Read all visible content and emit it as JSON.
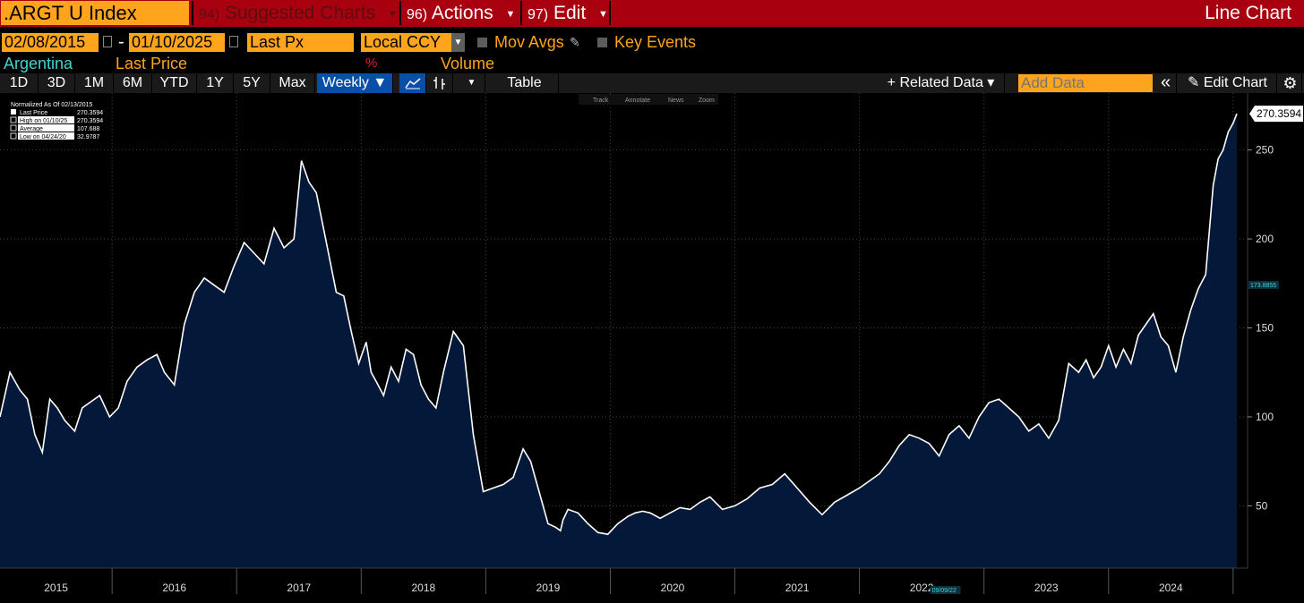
{
  "header": {
    "ticker": ".ARGT U Index",
    "menu": [
      {
        "num": "94)",
        "label": "Suggested Charts"
      },
      {
        "num": "96)",
        "label": "Actions"
      },
      {
        "num": "97)",
        "label": "Edit"
      }
    ],
    "chart_type": "Line Chart"
  },
  "controls": {
    "start_date": "02/08/2015",
    "end_date": "01/10/2025",
    "separator": "-",
    "field": "Last Px",
    "currency": "Local CCY",
    "mov_avgs": "Mov Avgs",
    "key_events": "Key Events"
  },
  "legend": {
    "security": "Argentina",
    "last_price": "Last Price",
    "percent": "%",
    "volume": "Volume"
  },
  "toolbar": {
    "ranges": [
      "1D",
      "3D",
      "1M",
      "6M",
      "YTD",
      "1Y",
      "5Y",
      "Max"
    ],
    "period": "Weekly ▼",
    "table": "Table",
    "related_data": "+ Related Data ▾",
    "add_data_placeholder": "Add Data",
    "collapse": "«",
    "edit_chart": "Edit Chart"
  },
  "chart_tools": [
    "Track",
    "Annotate",
    "News",
    "Zoom"
  ],
  "stats": {
    "header": "Normalized As Of 02/13/2015",
    "rows": [
      {
        "label": "Last Price",
        "value": "270.3594"
      },
      {
        "label": "High on 01/10/25",
        "value": "270.3594"
      },
      {
        "label": "Average",
        "value": "107.688"
      },
      {
        "label": "Low on 04/24/20",
        "value": "32.9787"
      }
    ]
  },
  "chart_data": {
    "type": "area",
    "title": ".ARGT U Index - Argentina Last Price (Normalized As Of 02/13/2015)",
    "xlabel": "",
    "ylabel": "",
    "x_ticks": [
      "2015",
      "2016",
      "2017",
      "2018",
      "2019",
      "2020",
      "2021",
      "2022",
      "2023",
      "2024"
    ],
    "y_ticks": [
      50,
      100,
      150,
      200,
      250
    ],
    "xlim": [
      2015.1,
      2025.03
    ],
    "ylim": [
      15,
      282
    ],
    "last_value_label": "270.3594",
    "mid_label": "173.8855",
    "date_marker": "09/09/22",
    "series": [
      {
        "name": "Last Price",
        "x": [
          2015.1,
          2015.18,
          2015.26,
          2015.32,
          2015.38,
          2015.44,
          2015.5,
          2015.56,
          2015.62,
          2015.7,
          2015.76,
          2015.82,
          2015.9,
          2015.98,
          2016.05,
          2016.12,
          2016.2,
          2016.28,
          2016.36,
          2016.42,
          2016.5,
          2016.58,
          2016.66,
          2016.74,
          2016.82,
          2016.9,
          2016.98,
          2017.06,
          2017.14,
          2017.22,
          2017.3,
          2017.38,
          2017.46,
          2017.52,
          2017.58,
          2017.64,
          2017.72,
          2017.8,
          2017.86,
          2017.92,
          2017.98,
          2018.04,
          2018.08,
          2018.12,
          2018.18,
          2018.24,
          2018.3,
          2018.36,
          2018.42,
          2018.48,
          2018.54,
          2018.6,
          2018.66,
          2018.74,
          2018.82,
          2018.9,
          2018.98,
          2019.06,
          2019.14,
          2019.22,
          2019.3,
          2019.36,
          2019.42,
          2019.5,
          2019.56,
          2019.6,
          2019.62,
          2019.66,
          2019.74,
          2019.82,
          2019.9,
          2019.98,
          2020.06,
          2020.14,
          2020.2,
          2020.26,
          2020.32,
          2020.4,
          2020.48,
          2020.56,
          2020.64,
          2020.72,
          2020.8,
          2020.9,
          2021.0,
          2021.1,
          2021.2,
          2021.3,
          2021.4,
          2021.5,
          2021.6,
          2021.7,
          2021.8,
          2021.9,
          2022.0,
          2022.08,
          2022.16,
          2022.24,
          2022.32,
          2022.4,
          2022.48,
          2022.56,
          2022.64,
          2022.72,
          2022.8,
          2022.88,
          2022.96,
          2023.04,
          2023.12,
          2023.2,
          2023.28,
          2023.36,
          2023.44,
          2023.52,
          2023.6,
          2023.68,
          2023.76,
          2023.82,
          2023.88,
          2023.94,
          2024.0,
          2024.06,
          2024.12,
          2024.18,
          2024.24,
          2024.3,
          2024.36,
          2024.42,
          2024.48,
          2024.54,
          2024.6,
          2024.66,
          2024.72,
          2024.78,
          2024.84,
          2024.88,
          2024.92,
          2024.96,
          2025.0,
          2025.03
        ],
        "values": [
          100,
          125,
          115,
          110,
          90,
          80,
          110,
          105,
          98,
          92,
          105,
          108,
          112,
          100,
          105,
          120,
          128,
          132,
          135,
          125,
          118,
          152,
          170,
          178,
          174,
          170,
          185,
          198,
          192,
          186,
          206,
          195,
          200,
          244,
          232,
          226,
          198,
          170,
          168,
          148,
          130,
          142,
          125,
          120,
          112,
          128,
          120,
          138,
          135,
          118,
          110,
          105,
          125,
          148,
          140,
          90,
          58,
          60,
          62,
          66,
          82,
          75,
          60,
          40,
          38,
          36,
          42,
          48,
          46,
          40,
          35,
          34,
          40,
          44,
          46,
          47,
          46,
          43,
          46,
          49,
          48,
          52,
          55,
          48,
          50,
          54,
          60,
          62,
          68,
          60,
          52,
          45,
          52,
          56,
          60,
          64,
          68,
          75,
          84,
          90,
          88,
          85,
          78,
          90,
          95,
          88,
          100,
          108,
          110,
          105,
          100,
          92,
          96,
          88,
          98,
          130,
          125,
          132,
          122,
          128,
          140,
          128,
          138,
          130,
          146,
          152,
          158,
          145,
          140,
          125,
          145,
          160,
          172,
          180,
          230,
          245,
          250,
          260,
          265,
          270.36
        ]
      }
    ]
  }
}
